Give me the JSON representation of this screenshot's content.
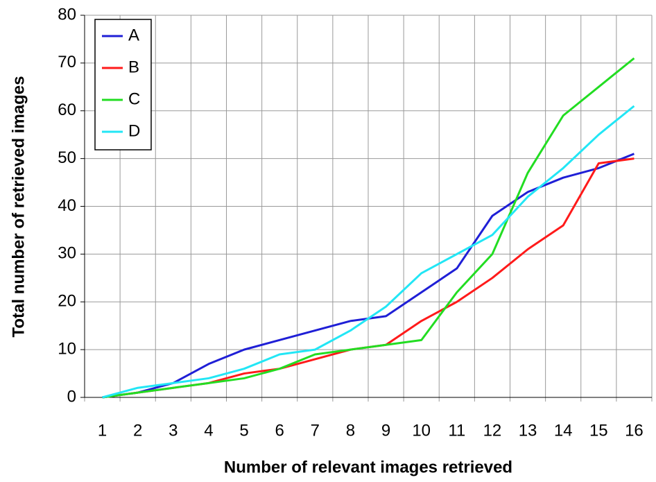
{
  "chart_data": {
    "type": "line",
    "x_label": "Number of relevant images retrieved",
    "y_label": "Total number of retrieved images",
    "categories": [
      1,
      2,
      3,
      4,
      5,
      6,
      7,
      8,
      9,
      10,
      11,
      12,
      13,
      14,
      15,
      16
    ],
    "series": [
      {
        "name": "A",
        "color": "#1f1fd6",
        "values": [
          0,
          1,
          3,
          7,
          10,
          12,
          14,
          16,
          17,
          22,
          27,
          38,
          43,
          46,
          48,
          51
        ]
      },
      {
        "name": "B",
        "color": "#ff1a1a",
        "values": [
          0,
          1,
          2,
          3,
          5,
          6,
          8,
          10,
          11,
          16,
          20,
          25,
          31,
          36,
          49,
          50
        ]
      },
      {
        "name": "C",
        "color": "#22dd22",
        "values": [
          0,
          1,
          2,
          3,
          4,
          6,
          9,
          10,
          11,
          12,
          22,
          30,
          47,
          59,
          65,
          71
        ]
      },
      {
        "name": "D",
        "color": "#22e6f5",
        "values": [
          0,
          2,
          3,
          4,
          6,
          9,
          10,
          14,
          19,
          26,
          30,
          34,
          42,
          48,
          55,
          61
        ]
      }
    ],
    "ylim": [
      0,
      80
    ],
    "yticks": [
      0,
      10,
      20,
      30,
      40,
      50,
      60,
      70,
      80
    ],
    "grid": true,
    "legend": "upper left"
  }
}
